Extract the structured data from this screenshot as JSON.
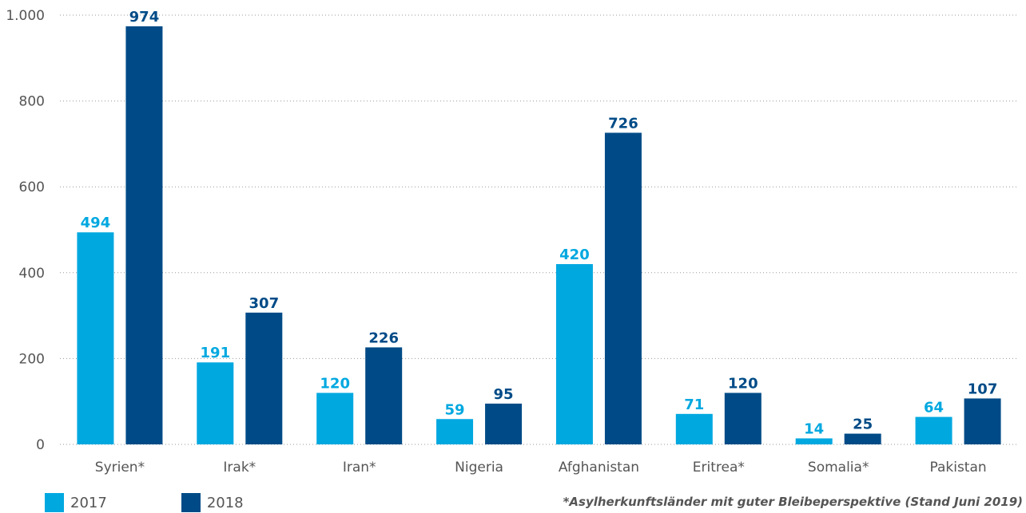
{
  "chart_data": {
    "type": "bar",
    "categories": [
      "Syrien*",
      "Irak*",
      "Iran*",
      "Nigeria",
      "Afghanistan",
      "Eritrea*",
      "Somalia*",
      "Pakistan"
    ],
    "series": [
      {
        "name": "2017",
        "values": [
          494,
          191,
          120,
          59,
          420,
          71,
          14,
          64
        ],
        "color": "#00a8e0"
      },
      {
        "name": "2018",
        "values": [
          974,
          307,
          226,
          95,
          726,
          120,
          25,
          107
        ],
        "color": "#004b87"
      }
    ],
    "value_labels": {
      "2017": [
        "494",
        "191",
        "120",
        "59",
        "420",
        "71",
        "14",
        "64"
      ],
      "2018": [
        "974",
        "307",
        "226",
        "95",
        "726",
        "120",
        "25",
        "107"
      ]
    },
    "ylim": [
      0,
      1000
    ],
    "yticks": [
      0,
      200,
      400,
      600,
      800,
      1000
    ],
    "ytick_labels": [
      "0",
      "200",
      "400",
      "600",
      "800",
      "1.000"
    ],
    "grid": true,
    "legend_position": "bottom-left",
    "footnote": "*Asylherkunftsländer mit guter Bleibeperspektive (Stand Juni 2019)"
  },
  "legend": {
    "items": [
      {
        "label": "2017",
        "color": "#00a8e0"
      },
      {
        "label": "2018",
        "color": "#004b87"
      }
    ]
  }
}
